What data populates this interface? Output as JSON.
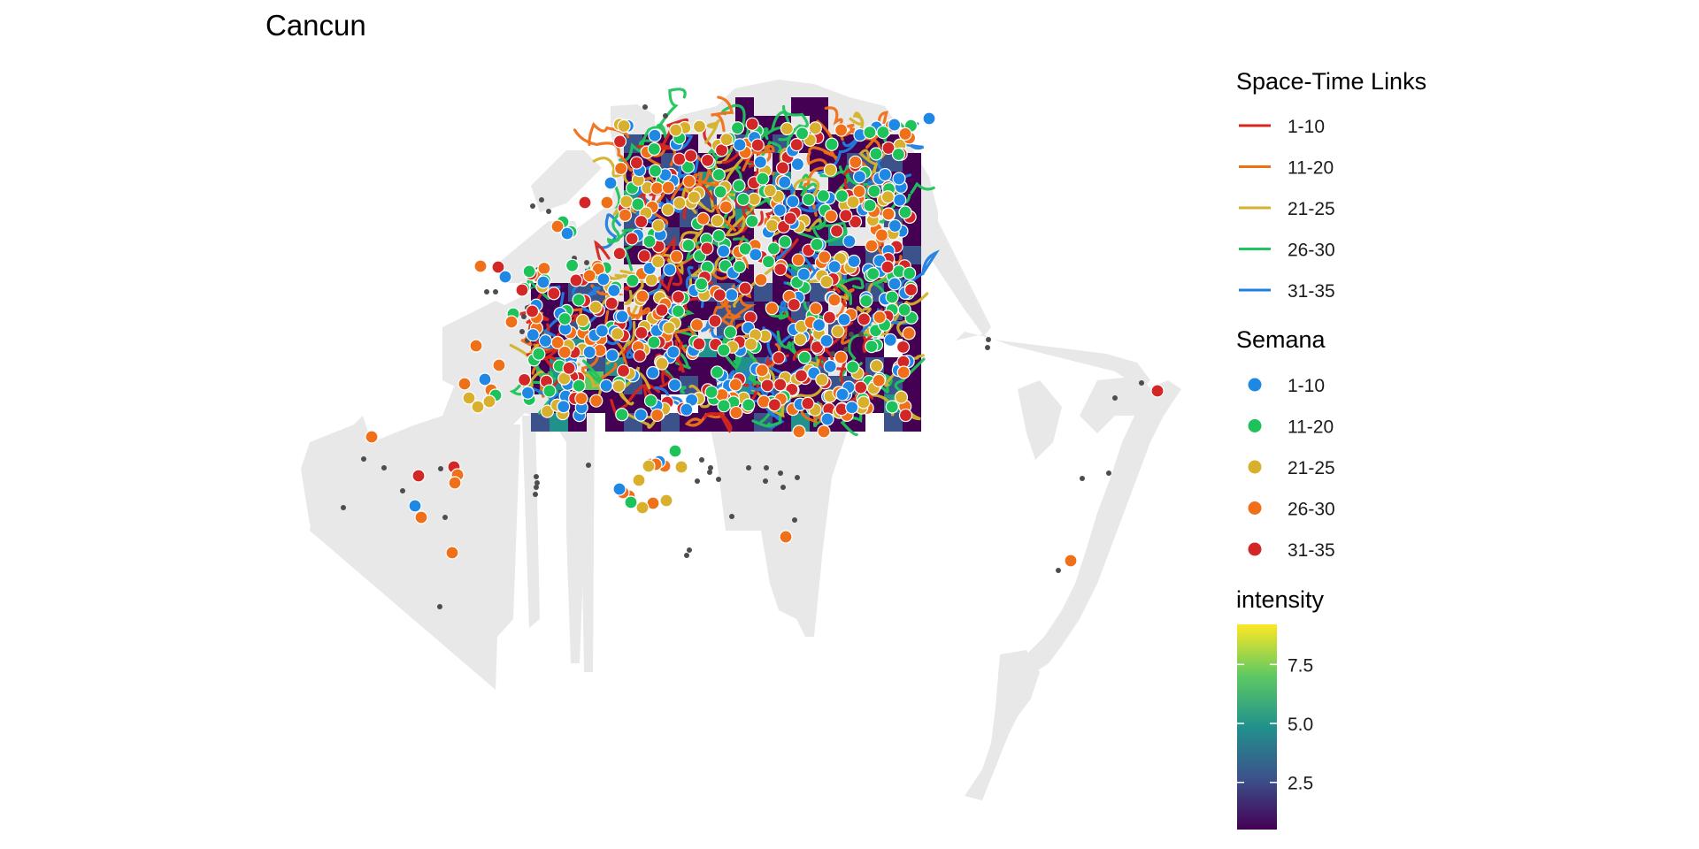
{
  "title": "Cancun",
  "colors": {
    "land": "#e8e8e8",
    "stop_points": "#4d4d4d",
    "viridis": [
      "#440154",
      "#3b528b",
      "#21918c",
      "#5ec962",
      "#fde725"
    ]
  },
  "legends": {
    "links": {
      "title": "Space-Time Links",
      "items": [
        {
          "label": "1-10",
          "color": "#d7261e"
        },
        {
          "label": "11-20",
          "color": "#f07018"
        },
        {
          "label": "21-25",
          "color": "#d4b22c"
        },
        {
          "label": "26-30",
          "color": "#1fc45c"
        },
        {
          "label": "31-35",
          "color": "#1f7fe0"
        }
      ]
    },
    "semana": {
      "title": "Semana",
      "items": [
        {
          "label": "1-10",
          "color": "#1f88e5"
        },
        {
          "label": "11-20",
          "color": "#1ec25a"
        },
        {
          "label": "21-25",
          "color": "#d8b02e"
        },
        {
          "label": "26-30",
          "color": "#f0701a"
        },
        {
          "label": "31-35",
          "color": "#d32626"
        }
      ]
    },
    "intensity": {
      "title": "intensity",
      "ticks": [
        "7.5",
        "5.0",
        "2.5"
      ],
      "range": [
        0.5,
        9.2
      ]
    }
  }
}
